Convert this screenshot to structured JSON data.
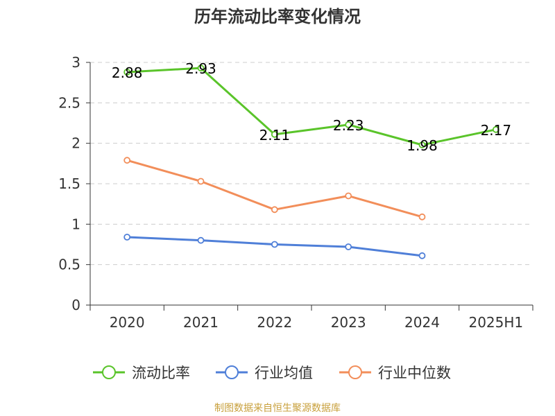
{
  "source_text": "制图数据来自恒生聚源数据库",
  "chart_data": {
    "type": "line",
    "title": "历年流动比率变化情况",
    "categories": [
      "2020",
      "2021",
      "2022",
      "2023",
      "2024",
      "2025H1"
    ],
    "y_ticks": [
      "0",
      "0.5",
      "1",
      "1.5",
      "2",
      "2.5",
      "3"
    ],
    "ylim": [
      0,
      3
    ],
    "grid": true,
    "legend_position": "bottom",
    "series": [
      {
        "name": "流动比率",
        "color": "#5ac42a",
        "values": [
          2.88,
          2.93,
          2.11,
          2.23,
          1.98,
          2.17
        ],
        "labels": [
          "2.88",
          "2.93",
          "2.11",
          "2.23",
          "1.98",
          "2.17"
        ]
      },
      {
        "name": "行业均值",
        "color": "#4f7fd8",
        "values": [
          0.84,
          0.8,
          0.75,
          0.72,
          0.61,
          null
        ]
      },
      {
        "name": "行业中位数",
        "color": "#f28e5a",
        "values": [
          1.79,
          1.53,
          1.18,
          1.35,
          1.09,
          null
        ]
      }
    ]
  }
}
